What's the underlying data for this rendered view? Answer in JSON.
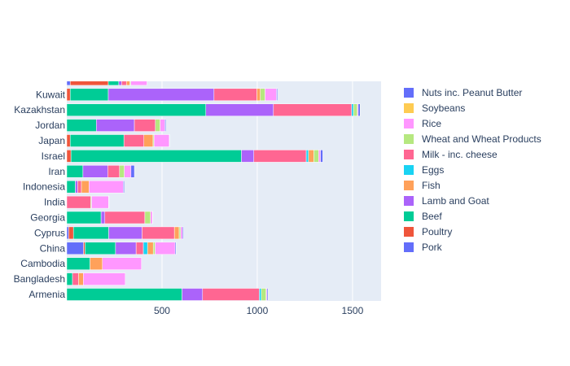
{
  "chart_data": {
    "type": "bar",
    "orientation": "horizontal",
    "barmode": "stack",
    "categories": [
      "Armenia",
      "Bangladesh",
      "Cambodia",
      "China",
      "Cyprus",
      "Georgia",
      "India",
      "Indonesia",
      "Iran",
      "Israel",
      "Japan",
      "Jordan",
      "Kazakhstan",
      "Kuwait"
    ],
    "xlim": [
      0,
      1650
    ],
    "xticks": [
      500,
      1000,
      1500
    ],
    "grid": true,
    "legend_position": "right",
    "series": [
      {
        "name": "Pork",
        "color": "#636efa",
        "values": [
          0,
          0,
          0,
          88,
          10,
          0,
          0,
          0,
          0,
          0,
          0,
          0,
          0,
          0
        ]
      },
      {
        "name": "Poultry",
        "color": "#EF553B",
        "values": [
          0,
          0,
          0,
          8,
          25,
          0,
          0,
          0,
          0,
          22,
          18,
          0,
          0,
          18
        ]
      },
      {
        "name": "Beef",
        "color": "#00cc96",
        "values": [
          605,
          30,
          122,
          160,
          185,
          180,
          0,
          45,
          85,
          895,
          282,
          155,
          730,
          200
        ]
      },
      {
        "name": "Lamb and Goat",
        "color": "#ab63fa",
        "values": [
          108,
          0,
          0,
          108,
          175,
          20,
          0,
          12,
          130,
          65,
          0,
          200,
          355,
          555
        ]
      },
      {
        "name": "Milk - inc. cheese",
        "color": "#FF6692",
        "values": [
          298,
          32,
          0,
          38,
          170,
          210,
          125,
          20,
          62,
          275,
          105,
          110,
          410,
          225
        ]
      },
      {
        "name": "Eggs",
        "color": "#19d3f3",
        "values": [
          10,
          0,
          0,
          22,
          0,
          0,
          0,
          0,
          0,
          12,
          0,
          0,
          10,
          0
        ]
      },
      {
        "name": "Fish",
        "color": "#FFA15A",
        "values": [
          0,
          25,
          65,
          30,
          25,
          0,
          0,
          40,
          0,
          28,
          48,
          0,
          0,
          18
        ]
      },
      {
        "name": "Wheat and Wheat Products",
        "color": "#B6E880",
        "values": [
          25,
          0,
          0,
          10,
          8,
          30,
          5,
          0,
          25,
          25,
          5,
          25,
          20,
          25
        ]
      },
      {
        "name": "Rice",
        "color": "#FF97FF",
        "values": [
          5,
          220,
          205,
          105,
          10,
          10,
          90,
          180,
          35,
          10,
          80,
          25,
          5,
          60
        ]
      },
      {
        "name": "Soybeans",
        "color": "#FECB52",
        "values": [
          0,
          0,
          0,
          0,
          0,
          0,
          0,
          0,
          0,
          0,
          0,
          0,
          0,
          0
        ]
      },
      {
        "name": "Nuts inc. Peanut Butter",
        "color": "#636efa",
        "values": [
          5,
          0,
          0,
          5,
          5,
          2,
          2,
          5,
          18,
          12,
          2,
          5,
          10,
          5
        ]
      }
    ],
    "legend_order": [
      "Nuts inc. Peanut Butter",
      "Soybeans",
      "Rice",
      "Wheat and Wheat Products",
      "Milk - inc. cheese",
      "Eggs",
      "Fish",
      "Lamb and Goat",
      "Beef",
      "Poultry",
      "Pork"
    ],
    "partial_top_bar_values": [
      18,
      200,
      55,
      15,
      25,
      0,
      18,
      5,
      85,
      0,
      0
    ]
  }
}
